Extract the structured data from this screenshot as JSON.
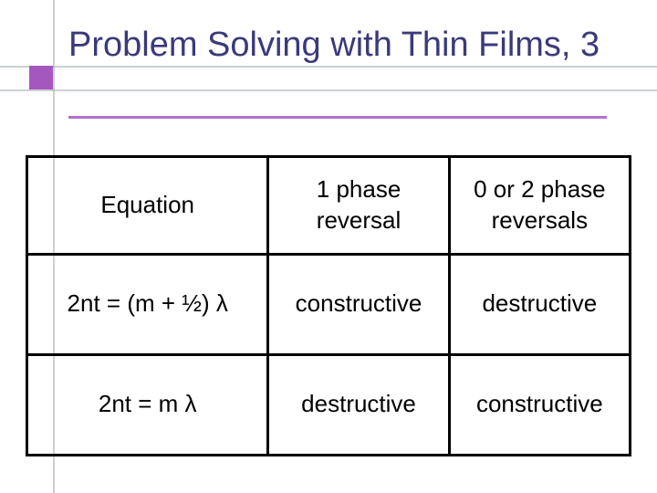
{
  "slide": {
    "title": "Problem Solving with Thin Films, 3",
    "accent_color": "#a458bd",
    "underline_color": "#b56fcf",
    "title_color": "#3a3a7a",
    "grid_color": "#8d9aa0",
    "background_color": "#ffffff",
    "title_fontsize": 38
  },
  "table": {
    "type": "table",
    "border_color": "#000000",
    "border_width": 3,
    "cell_fontsize": 26,
    "columns": [
      {
        "label": "Equation",
        "width_pct": 40
      },
      {
        "label": "1 phase reversal",
        "width_pct": 30
      },
      {
        "label": "0 or 2 phase reversals",
        "width_pct": 30
      }
    ],
    "rows": [
      {
        "equation": "2nt = (m + ½) λ",
        "c2": "constructive",
        "c3": "destructive"
      },
      {
        "equation": "2nt = m λ",
        "c2": "destructive",
        "c3": "constructive"
      }
    ]
  }
}
